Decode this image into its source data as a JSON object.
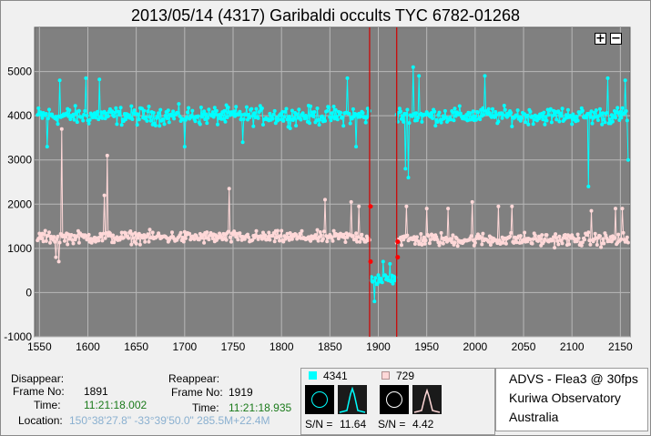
{
  "chart_data": {
    "type": "line",
    "title": "2013/05/14 (4317) Garibaldi occults TYC 6782-01268",
    "xlabel": "",
    "ylabel": "",
    "xlim": [
      1545,
      2160
    ],
    "ylim": [
      -1000,
      6000
    ],
    "xticks": [
      1550,
      1600,
      1650,
      1700,
      1750,
      1800,
      1850,
      1900,
      1950,
      2000,
      2050,
      2100,
      2150
    ],
    "yticks": [
      -1000,
      0,
      1000,
      2000,
      3000,
      4000,
      5000
    ],
    "grid": true,
    "background": "#808080",
    "markers": [
      1891,
      1919
    ],
    "series": [
      {
        "color": "#00ffff",
        "segments": [
          {
            "x_range": [
              1548,
              1891
            ],
            "level": 4000,
            "spread": 300,
            "points": [
              [
                1571,
                4800
              ],
              [
                1598,
                4850
              ],
              [
                1612,
                4820
              ],
              [
                1558,
                3300
              ],
              [
                1700,
                3300
              ],
              [
                1760,
                3400
              ],
              [
                1868,
                4850
              ],
              [
                1877,
                3300
              ],
              [
                1862,
                3950
              ]
            ]
          },
          {
            "x_range": [
              1892,
              1918
            ],
            "level": 300,
            "spread": 180,
            "points": [
              [
                1896,
                -200
              ],
              [
                1905,
                700
              ],
              [
                1912,
                650
              ]
            ]
          },
          {
            "x_range": [
              1919,
              2158
            ],
            "level": 4000,
            "spread": 280,
            "points": [
              [
                1928,
                2800
              ],
              [
                1931,
                2600
              ],
              [
                1936,
                5100
              ],
              [
                1942,
                4900
              ],
              [
                2010,
                4900
              ],
              [
                2117,
                2400
              ],
              [
                2137,
                4850
              ],
              [
                2155,
                4800
              ],
              [
                2158,
                3000
              ]
            ]
          }
        ]
      },
      {
        "color": "#ffd8d8",
        "segments": [
          {
            "x_range": [
              1548,
              1891
            ],
            "level": 1250,
            "spread": 200,
            "points": [
              [
                1573,
                3700
              ],
              [
                1567,
                800
              ],
              [
                1570,
                700
              ],
              [
                1620,
                3100
              ],
              [
                1617,
                2200
              ],
              [
                1746,
                2350
              ],
              [
                1845,
                2100
              ],
              [
                1872,
                2050
              ],
              [
                1880,
                1950
              ],
              [
                1887,
                1150
              ]
            ]
          },
          {
            "x_range": [
              1919,
              2158
            ],
            "level": 1200,
            "spread": 220,
            "points": [
              [
                1929,
                1950
              ],
              [
                1950,
                1900
              ],
              [
                1972,
                1900
              ],
              [
                1997,
                2050
              ],
              [
                2024,
                1950
              ],
              [
                2038,
                1950
              ],
              [
                2120,
                1850
              ],
              [
                2145,
                1900
              ],
              [
                2152,
                1900
              ]
            ]
          }
        ]
      }
    ],
    "marker_dots": [
      [
        1892,
        1950
      ],
      [
        1892,
        700
      ],
      [
        1920,
        1150
      ],
      [
        1920,
        800
      ]
    ]
  },
  "zoom": {
    "plus": "+",
    "minus": "−"
  },
  "disappear": {
    "heading": "Disappear:",
    "frame_label": "Frame No:",
    "frame_value": "1891",
    "time_label": "Time:",
    "time_value": "11:21:18.002",
    "location_label": "Location:",
    "location_value": "150°38'27.8\" -33°39'50.0\" 285.5M+22.4M"
  },
  "reappear": {
    "heading": "Reappear:",
    "frame_label": "Frame No:",
    "frame_value": "1919",
    "time_label": "Time:",
    "time_value": "11:21:18.935"
  },
  "targets": [
    {
      "id": "4341",
      "color": "#00ffff",
      "sn_label": "S/N =",
      "sn": "11.64"
    },
    {
      "id": "729",
      "color": "#ffd8d8",
      "sn_label": "S/N =",
      "sn": "4.42"
    }
  ],
  "site": {
    "line1": "ADVS - Flea3 @ 30fps",
    "line2": "Kuriwa Observatory",
    "line3": "Australia"
  }
}
